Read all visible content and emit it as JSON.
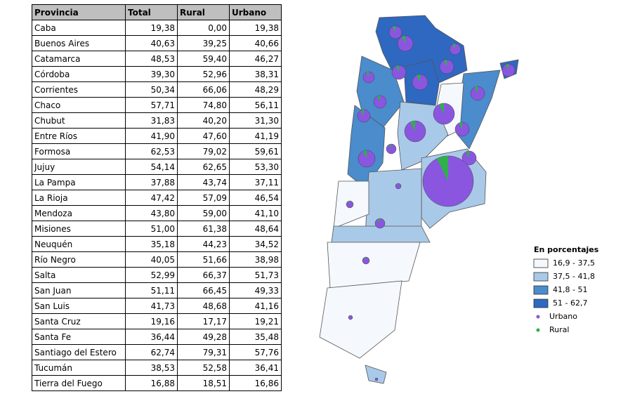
{
  "table": {
    "header": [
      "Provincia",
      "Total",
      "Rural",
      "Urbano"
    ],
    "rows": [
      [
        "Caba",
        "19,38",
        "0,00",
        "19,38"
      ],
      [
        "Buenos Aires",
        "40,63",
        "39,25",
        "40,66"
      ],
      [
        "Catamarca",
        "48,53",
        "59,40",
        "46,27"
      ],
      [
        "Córdoba",
        "39,30",
        "52,96",
        "38,31"
      ],
      [
        "Corrientes",
        "50,34",
        "66,06",
        "48,29"
      ],
      [
        "Chaco",
        "57,71",
        "74,80",
        "56,11"
      ],
      [
        "Chubut",
        "31,83",
        "40,20",
        "31,30"
      ],
      [
        "Entre Ríos",
        "41,90",
        "47,60",
        "41,19"
      ],
      [
        "Formosa",
        "62,53",
        "79,02",
        "59,61"
      ],
      [
        "Jujuy",
        "54,14",
        "62,65",
        "53,30"
      ],
      [
        "La Pampa",
        "37,88",
        "43,74",
        "37,11"
      ],
      [
        "La Rioja",
        "47,42",
        "57,09",
        "46,54"
      ],
      [
        "Mendoza",
        "43,80",
        "59,00",
        "41,10"
      ],
      [
        "Misiones",
        "51,00",
        "61,38",
        "48,64"
      ],
      [
        "Neuquén",
        "35,18",
        "44,23",
        "34,52"
      ],
      [
        "Río Negro",
        "40,05",
        "51,66",
        "38,98"
      ],
      [
        "Salta",
        "52,99",
        "66,37",
        "51,73"
      ],
      [
        "San Juan",
        "51,11",
        "66,45",
        "49,33"
      ],
      [
        "San Luis",
        "41,73",
        "48,68",
        "41,16"
      ],
      [
        "Santa Cruz",
        "19,16",
        "17,17",
        "19,21"
      ],
      [
        "Santa Fe",
        "36,44",
        "49,28",
        "35,48"
      ],
      [
        "Santiago del Estero",
        "62,74",
        "79,31",
        "57,76"
      ],
      [
        "Tucumán",
        "38,53",
        "52,58",
        "36,41"
      ],
      [
        "Tierra del Fuego",
        "16,88",
        "18,51",
        "16,86"
      ]
    ]
  },
  "legend": {
    "title": "En porcentajes",
    "items": [
      "16,9 - 37,5",
      "37,5 - 41,8",
      "41,8 - 51",
      "51 - 62,7",
      "Urbano",
      "Rural"
    ]
  }
}
